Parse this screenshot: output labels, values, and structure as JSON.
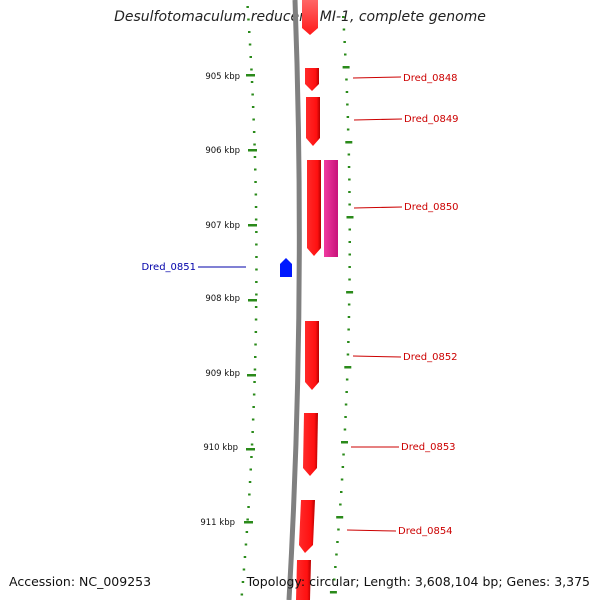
{
  "title": "Desulfotomaculum reducens MI-1, complete genome",
  "footer": {
    "accession": "Accession: NC_009253",
    "summary": "Topology: circular; Length: 3,608,104 bp; Genes: 3,375"
  },
  "colors": {
    "forward_gene": "#ff1a1a",
    "forward_gene_dark": "#c80000",
    "rna_gene": "#e8208e",
    "reverse_gene": "#0018ff",
    "backbone": "#808080",
    "tick": "#2a8a1a",
    "ruler_label": "#111111",
    "forward_label": "#cc0000",
    "reverse_label": "#0000aa"
  },
  "ruler": {
    "unit": "kbp",
    "labels": [
      "905 kbp",
      "906 kbp",
      "907 kbp",
      "908 kbp",
      "909 kbp",
      "910 kbp",
      "911 kbp"
    ]
  },
  "genes": [
    {
      "label": "Dred_0848",
      "strand": "forward"
    },
    {
      "label": "Dred_0849",
      "strand": "forward"
    },
    {
      "label": "Dred_0850",
      "strand": "forward"
    },
    {
      "label": "Dred_0851",
      "strand": "reverse"
    },
    {
      "label": "Dred_0852",
      "strand": "forward"
    },
    {
      "label": "Dred_0853",
      "strand": "forward"
    },
    {
      "label": "Dred_0854",
      "strand": "forward"
    }
  ]
}
